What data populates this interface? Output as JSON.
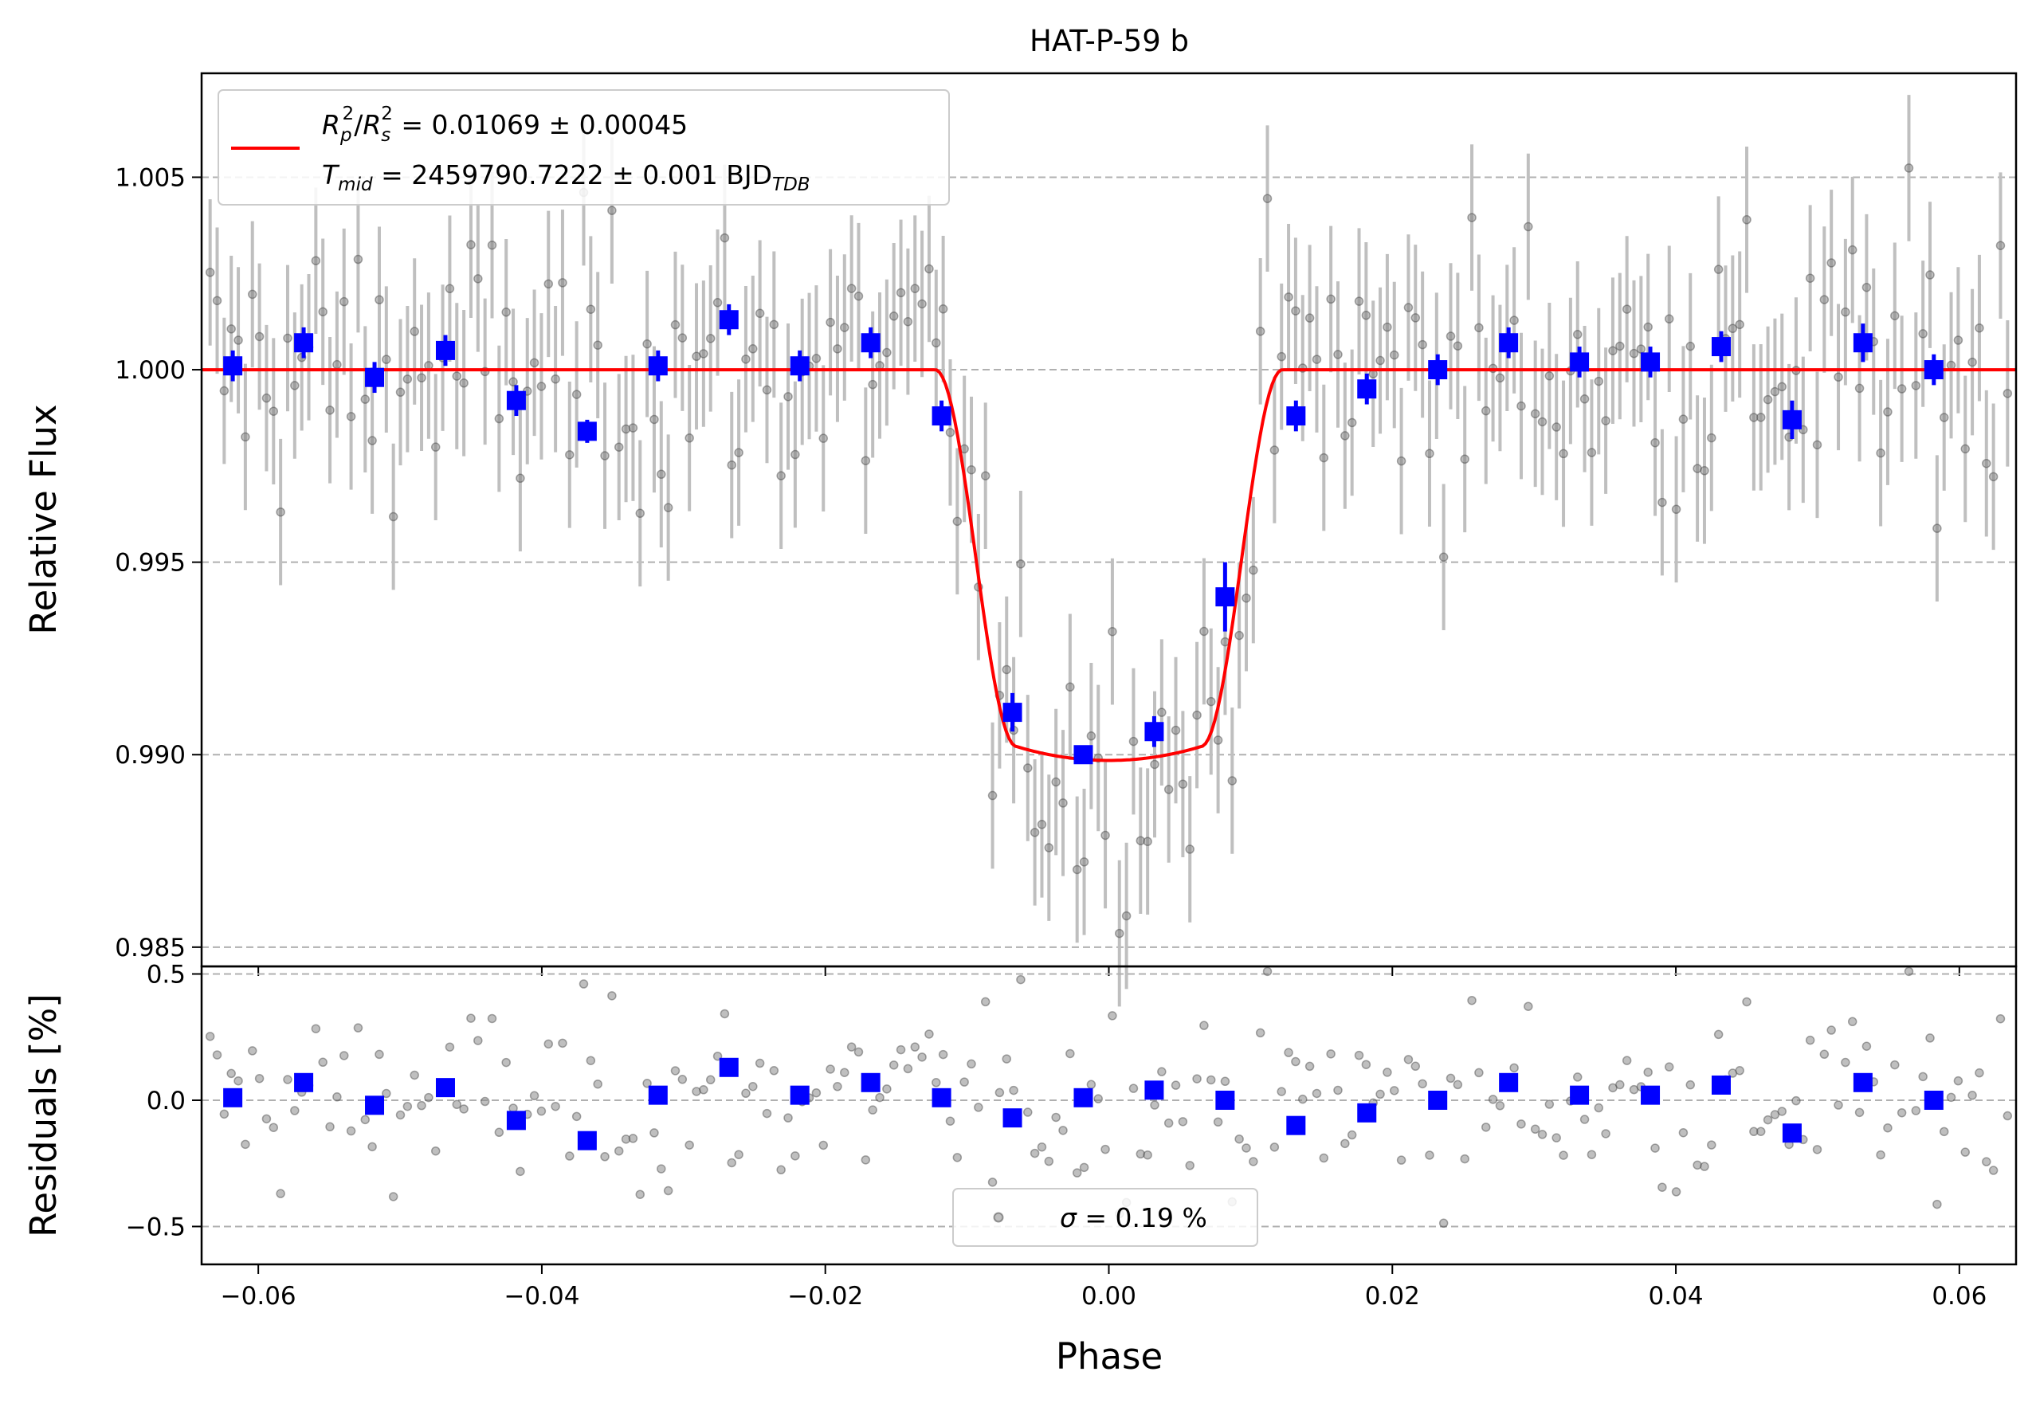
{
  "chart_data": [
    {
      "type": "scatter",
      "panel": "main",
      "title": "HAT-P-59 b",
      "xlabel": "",
      "ylabel": "Relative Flux",
      "xlim": [
        -0.064,
        0.064
      ],
      "ylim": [
        0.9845,
        1.0077
      ],
      "xticks": [
        -0.06,
        -0.04,
        -0.02,
        0.0,
        0.02,
        0.04,
        0.06
      ],
      "yticks": [
        "1.005",
        "1.000",
        "0.995",
        "0.990",
        "0.985"
      ],
      "grid": "horizontal dashed",
      "legend": {
        "placement": "top-left",
        "line1": "R_p²/R_s² = 0.01069 ± 0.00045",
        "line1_parts": {
          "r1": "R",
          "r1sub": "p",
          "r1sup": "2",
          "sep": "/",
          "r2": "R",
          "r2sub": "s",
          "r2sup": "2",
          "rest": " = 0.01069 ± 0.00045"
        },
        "line2": "T_mid = 2459790.7222 ± 0.001 BJD_TDB",
        "line2_parts": {
          "t": "T",
          "tsub": "mid",
          "mid": " = 2459790.7222 ± 0.001 BJD",
          "unitsub": "TDB"
        }
      },
      "series": [
        {
          "kind": "model",
          "color": "#ff0000",
          "depth": 0.01069,
          "t14": 0.0245,
          "t23": 0.013,
          "ld_min": 0.98985
        },
        {
          "kind": "data",
          "color": "#808080",
          "n": 256,
          "sigma_percent": 0.19,
          "errorbar": 0.0019
        },
        {
          "kind": "binned",
          "color": "#0000ff",
          "x": [
            -0.0618,
            -0.0568,
            -0.0518,
            -0.0468,
            -0.0418,
            -0.0368,
            -0.0318,
            -0.0268,
            -0.0218,
            -0.0168,
            -0.0118,
            -0.0068,
            -0.0018,
            0.0032,
            0.0082,
            0.0132,
            0.0182,
            0.0232,
            0.0282,
            0.0332,
            0.0382,
            0.0432,
            0.0482,
            0.0532,
            0.0582
          ],
          "y": [
            1.0001,
            1.0007,
            0.9998,
            1.0005,
            0.9992,
            0.9984,
            1.0001,
            1.0013,
            1.0001,
            1.0007,
            0.9988,
            0.9911,
            0.99,
            0.9906,
            0.9941,
            0.9988,
            0.9995,
            1.0,
            1.0007,
            1.0002,
            1.0002,
            1.0006,
            0.9987,
            1.0007,
            1.0
          ],
          "yerr": [
            0.0004,
            0.0004,
            0.0004,
            0.0004,
            0.0004,
            0.0003,
            0.0004,
            0.0004,
            0.0004,
            0.0004,
            0.0004,
            0.0005,
            0.0002,
            0.0004,
            0.0009,
            0.0004,
            0.0004,
            0.0004,
            0.0004,
            0.0004,
            0.0004,
            0.0004,
            0.0005,
            0.0005,
            0.0004
          ]
        }
      ]
    },
    {
      "type": "scatter",
      "panel": "residuals",
      "xlabel": "Phase",
      "ylabel": "Residuals [%]",
      "xlim": [
        -0.064,
        0.064
      ],
      "ylim": [
        -0.65,
        0.53
      ],
      "xticks": [
        "−0.06",
        "−0.04",
        "−0.02",
        "0.00",
        "0.02",
        "0.04",
        "0.06"
      ],
      "yticks": [
        "0.5",
        "0.0",
        "−0.5"
      ],
      "grid": "horizontal dashed",
      "legend": {
        "placement": "bottom-center",
        "label": "σ = 0.19 %",
        "sym": "σ",
        "rest": " = 0.19 %"
      },
      "series": [
        {
          "kind": "data",
          "color": "#808080"
        },
        {
          "kind": "binned",
          "color": "#0000ff",
          "x": [
            -0.0618,
            -0.0568,
            -0.0518,
            -0.0468,
            -0.0418,
            -0.0368,
            -0.0318,
            -0.0268,
            -0.0218,
            -0.0168,
            -0.0118,
            -0.0068,
            -0.0018,
            0.0032,
            0.0082,
            0.0132,
            0.0182,
            0.0232,
            0.0282,
            0.0332,
            0.0382,
            0.0432,
            0.0482,
            0.0532,
            0.0582
          ],
          "y": [
            0.01,
            0.07,
            -0.02,
            0.05,
            -0.08,
            -0.16,
            0.02,
            0.13,
            0.02,
            0.07,
            0.01,
            -0.07,
            0.01,
            0.04,
            0.0,
            -0.1,
            -0.05,
            0.0,
            0.07,
            0.02,
            0.02,
            0.06,
            -0.13,
            0.07,
            0.0
          ]
        }
      ]
    }
  ]
}
